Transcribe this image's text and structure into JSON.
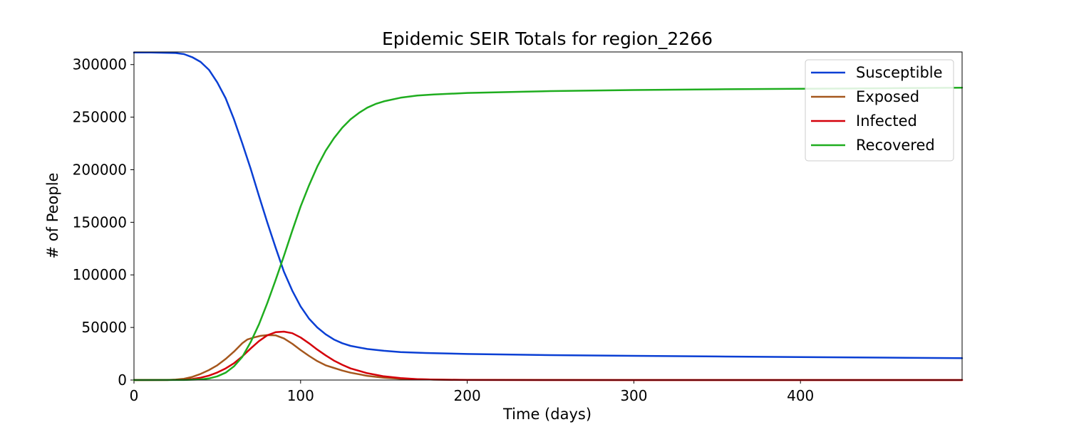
{
  "chart_data": {
    "type": "line",
    "title": "Epidemic SEIR Totals for region_2266",
    "xlabel": "Time (days)",
    "ylabel": "# of People",
    "xlim": [
      0,
      497
    ],
    "ylim": [
      0,
      312000
    ],
    "xticks": [
      0,
      100,
      200,
      300,
      400
    ],
    "yticks": [
      0,
      50000,
      100000,
      150000,
      200000,
      250000,
      300000
    ],
    "grid": false,
    "legend_position": "top-right",
    "series": [
      {
        "name": "Susceptible",
        "color": "#0a3fd4",
        "x": [
          0,
          10,
          20,
          25,
          30,
          35,
          40,
          45,
          50,
          55,
          60,
          65,
          70,
          75,
          80,
          85,
          90,
          95,
          100,
          105,
          110,
          115,
          120,
          125,
          130,
          140,
          150,
          160,
          175,
          200,
          250,
          300,
          350,
          400,
          450,
          497
        ],
        "y": [
          311500,
          311500,
          311200,
          311000,
          310000,
          307000,
          302500,
          295000,
          283000,
          268000,
          248000,
          225000,
          201000,
          175000,
          150000,
          126000,
          103000,
          85000,
          70000,
          58500,
          50000,
          43500,
          38500,
          35000,
          32500,
          29500,
          27800,
          26500,
          25700,
          24800,
          23700,
          23000,
          22400,
          21800,
          21300,
          20800
        ]
      },
      {
        "name": "Exposed",
        "color": "#a5571d",
        "x": [
          0,
          20,
          25,
          30,
          35,
          40,
          45,
          50,
          55,
          60,
          65,
          68,
          72,
          76,
          80,
          85,
          90,
          95,
          100,
          105,
          110,
          115,
          120,
          125,
          130,
          140,
          150,
          160,
          180,
          200,
          250,
          300,
          400,
          497
        ],
        "y": [
          0,
          100,
          400,
          1200,
          3000,
          5800,
          9500,
          14000,
          20000,
          27000,
          35000,
          38500,
          40500,
          42000,
          42700,
          42500,
          39500,
          34500,
          28500,
          23000,
          18000,
          14000,
          11500,
          9000,
          7000,
          4000,
          2200,
          1200,
          400,
          150,
          50,
          20,
          10,
          10
        ]
      },
      {
        "name": "Infected",
        "color": "#d4000a",
        "x": [
          0,
          20,
          30,
          35,
          40,
          45,
          50,
          55,
          60,
          65,
          70,
          75,
          80,
          85,
          90,
          95,
          100,
          105,
          110,
          115,
          120,
          125,
          130,
          140,
          150,
          160,
          170,
          180,
          200,
          250,
          300,
          400,
          497
        ],
        "y": [
          0,
          50,
          400,
          1000,
          2200,
          4200,
          7200,
          11000,
          16000,
          22500,
          30000,
          37000,
          42500,
          45500,
          46000,
          44500,
          40500,
          35000,
          29000,
          23500,
          18500,
          14500,
          11000,
          6500,
          3500,
          1800,
          900,
          400,
          100,
          20,
          10,
          5,
          5
        ]
      },
      {
        "name": "Recovered",
        "color": "#1fad1f",
        "x": [
          0,
          30,
          40,
          45,
          50,
          55,
          60,
          65,
          70,
          75,
          80,
          85,
          90,
          95,
          100,
          105,
          110,
          115,
          120,
          125,
          130,
          135,
          140,
          145,
          150,
          160,
          170,
          180,
          200,
          250,
          300,
          350,
          400,
          450,
          497
        ],
        "y": [
          0,
          100,
          600,
          1500,
          3500,
          7000,
          13000,
          22000,
          36000,
          53000,
          73000,
          95000,
          118000,
          142000,
          165000,
          185000,
          203000,
          218000,
          230000,
          240000,
          248000,
          254000,
          259000,
          262500,
          265000,
          268500,
          270500,
          271500,
          273000,
          274800,
          275800,
          276500,
          277000,
          277500,
          278000
        ]
      }
    ]
  }
}
